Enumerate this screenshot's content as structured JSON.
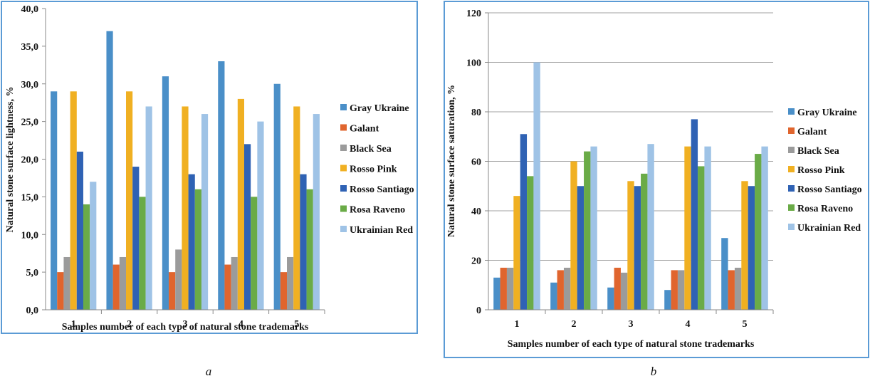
{
  "colors": {
    "Gray Ukraine": "#4a8fc8",
    "Galant": "#e0652e",
    "Black Sea": "#9b9b9b",
    "Rosso Pink": "#f0b022",
    "Rosso Santiago": "#2f62b4",
    "Rosa Raveno": "#6aab47",
    "Ukrainian Red": "#9fc3e6"
  },
  "chart_data": [
    {
      "type": "bar",
      "caption": "a",
      "title": "",
      "xlabel": "Samples number of each type of natural stone trademarks",
      "ylabel": "Natural stone surface lightness, %",
      "categories": [
        "1",
        "2",
        "3",
        "4",
        "5"
      ],
      "ylim": [
        0,
        40
      ],
      "yticks": [
        "0,0",
        "5,0",
        "10,0",
        "15,0",
        "20,0",
        "25,0",
        "30,0",
        "35,0",
        "40,0"
      ],
      "ytick_step": 5,
      "grid": false,
      "legend": "right",
      "series": [
        {
          "name": "Gray Ukraine",
          "values": [
            29,
            37,
            31,
            33,
            30
          ]
        },
        {
          "name": "Galant",
          "values": [
            5,
            6,
            5,
            6,
            5
          ]
        },
        {
          "name": "Black Sea",
          "values": [
            7,
            7,
            8,
            7,
            7
          ]
        },
        {
          "name": "Rosso Pink",
          "values": [
            29,
            29,
            27,
            28,
            27
          ]
        },
        {
          "name": "Rosso Santiago",
          "values": [
            21,
            19,
            18,
            22,
            18
          ]
        },
        {
          "name": "Rosa Raveno",
          "values": [
            14,
            15,
            16,
            15,
            16
          ]
        },
        {
          "name": "Ukrainian Red",
          "values": [
            17,
            27,
            26,
            25,
            26
          ]
        }
      ]
    },
    {
      "type": "bar",
      "caption": "b",
      "title": "",
      "xlabel": "Samples number of each type of natural stone trademarks",
      "ylabel": "Natural stone surface saturation, %",
      "categories": [
        "1",
        "2",
        "3",
        "4",
        "5"
      ],
      "ylim": [
        0,
        120
      ],
      "yticks": [
        "0",
        "20",
        "40",
        "60",
        "80",
        "100",
        "120"
      ],
      "ytick_step": 20,
      "grid": true,
      "legend": "right",
      "series": [
        {
          "name": "Gray Ukraine",
          "values": [
            13,
            11,
            9,
            8,
            29
          ]
        },
        {
          "name": "Galant",
          "values": [
            17,
            16,
            17,
            16,
            16
          ]
        },
        {
          "name": "Black Sea",
          "values": [
            17,
            17,
            15,
            16,
            17
          ]
        },
        {
          "name": "Rosso Pink",
          "values": [
            46,
            60,
            52,
            66,
            52
          ]
        },
        {
          "name": "Rosso Santiago",
          "values": [
            71,
            50,
            50,
            77,
            50
          ]
        },
        {
          "name": "Rosa Raveno",
          "values": [
            54,
            64,
            55,
            58,
            63
          ]
        },
        {
          "name": "Ukrainian Red",
          "values": [
            100,
            66,
            67,
            66,
            66
          ]
        }
      ]
    }
  ]
}
